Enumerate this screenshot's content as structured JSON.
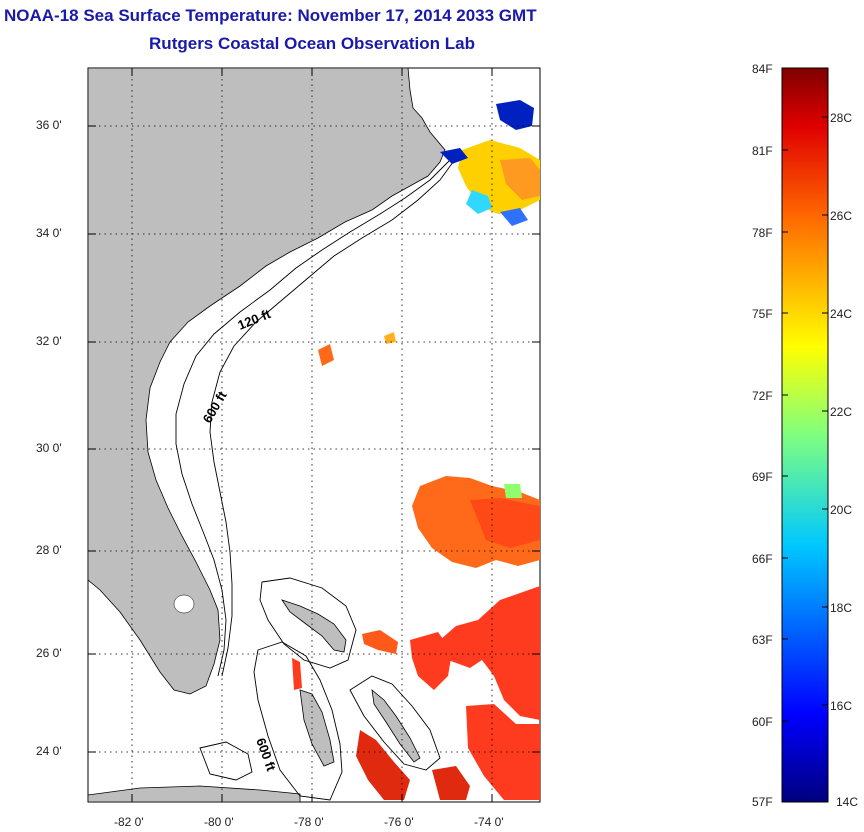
{
  "title": "NOAA-18 Sea Surface Temperature:  November 17, 2014 2033 GMT",
  "subtitle": "Rutgers Coastal Ocean Observation Lab",
  "lat_labels": [
    "36 0'",
    "34 0'",
    "32 0'",
    "30 0'",
    "28 0'",
    "26 0'",
    "24 0'"
  ],
  "lon_labels": [
    "-82 0'",
    "-80 0'",
    "-78 0'",
    "-76 0'",
    "-74 0'"
  ],
  "isobath_labels": [
    "120 ft",
    "600 ft",
    "600 ft"
  ],
  "colorbar": {
    "f_labels": [
      "84F",
      "81F",
      "78F",
      "75F",
      "72F",
      "69F",
      "66F",
      "63F",
      "60F",
      "57F"
    ],
    "c_labels": [
      "28C",
      "26C",
      "24C",
      "22C",
      "20C",
      "18C",
      "16C",
      "14C"
    ]
  },
  "colors": {
    "land": "#bebebe",
    "title": "#1a1aa8",
    "sst_warm": "#ff3b1f",
    "sst_orange": "#ff6a1a"
  }
}
